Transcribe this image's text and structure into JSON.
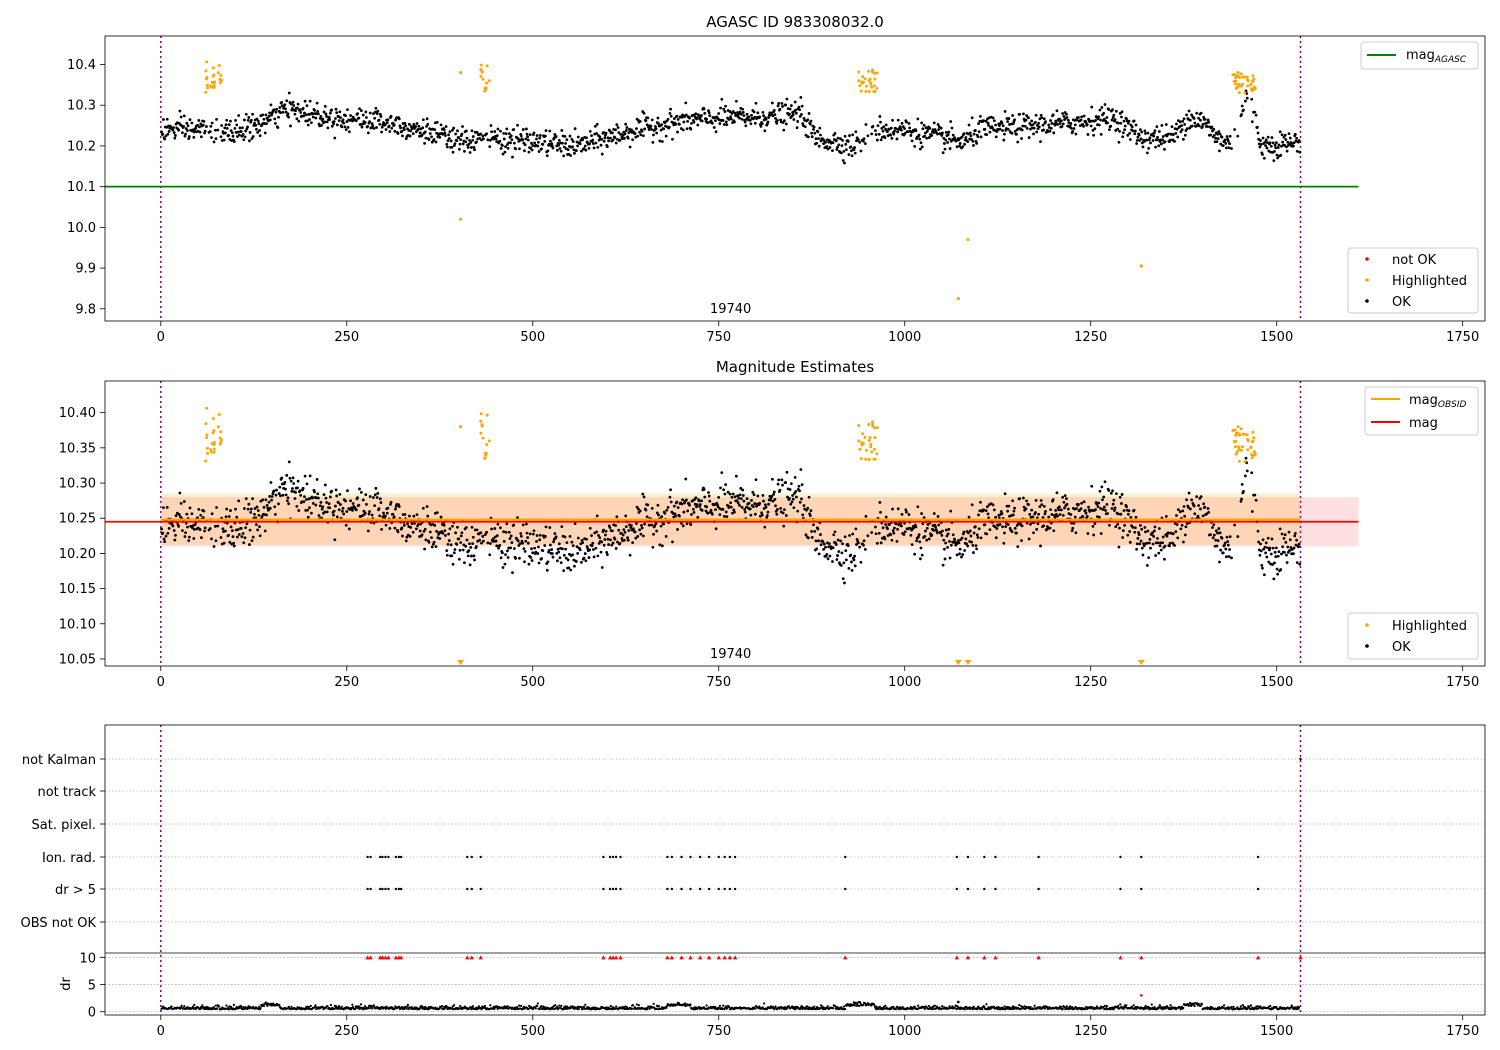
{
  "figure": {
    "title_top": "AGASC ID 983308032.0",
    "title_mid": "Magnitude Estimates"
  },
  "chart_data": [
    {
      "type": "scatter",
      "title": "AGASC ID 983308032.0",
      "xlim": [
        -75,
        1780
      ],
      "ylim": [
        9.77,
        10.47
      ],
      "xticks": [
        0,
        250,
        500,
        750,
        1000,
        1250,
        1500,
        1750
      ],
      "xtick_labels": [
        "0",
        "250",
        "500",
        "750",
        "1000",
        "1250",
        "1500",
        "1750"
      ],
      "yticks": [
        9.8,
        9.9,
        10.0,
        10.1,
        10.2,
        10.3,
        10.4
      ],
      "ytick_labels": [
        "9.8",
        "9.9",
        "10.0",
        "10.1",
        "10.2",
        "10.3",
        "10.4"
      ],
      "vlines": [
        0,
        1532
      ],
      "vline_color": "#800080",
      "hline": {
        "y": 10.1,
        "x_end": 1610,
        "color": "#008000"
      },
      "obsid_label": {
        "text": "19740",
        "x": 766
      },
      "legend_upper": {
        "position": "upper right",
        "entries": [
          {
            "label": "mag",
            "subscript": "AGASC",
            "color": "#008000",
            "kind": "line"
          }
        ]
      },
      "legend_lower": {
        "position": "lower right",
        "entries": [
          {
            "label": "not OK",
            "color": "#ff0000",
            "kind": "dot"
          },
          {
            "label": "Highlighted",
            "color": "#ffa500",
            "kind": "dot"
          },
          {
            "label": "OK",
            "color": "#000000",
            "kind": "dot"
          }
        ]
      },
      "base_level": [
        [
          0,
          10.24
        ],
        [
          60,
          10.24
        ],
        [
          85,
          10.23
        ],
        [
          130,
          10.25
        ],
        [
          170,
          10.29
        ],
        [
          230,
          10.27
        ],
        [
          300,
          10.26
        ],
        [
          350,
          10.24
        ],
        [
          400,
          10.21
        ],
        [
          440,
          10.22
        ],
        [
          500,
          10.21
        ],
        [
          560,
          10.2
        ],
        [
          640,
          10.24
        ],
        [
          700,
          10.26
        ],
        [
          760,
          10.27
        ],
        [
          800,
          10.27
        ],
        [
          860,
          10.28
        ],
        [
          880,
          10.22
        ],
        [
          930,
          10.2
        ],
        [
          960,
          10.24
        ],
        [
          1000,
          10.24
        ],
        [
          1050,
          10.22
        ],
        [
          1080,
          10.21
        ],
        [
          1100,
          10.24
        ],
        [
          1180,
          10.25
        ],
        [
          1240,
          10.26
        ],
        [
          1280,
          10.27
        ],
        [
          1320,
          10.22
        ],
        [
          1360,
          10.22
        ],
        [
          1380,
          10.27
        ],
        [
          1400,
          10.26
        ],
        [
          1420,
          10.22
        ],
        [
          1440,
          10.2
        ],
        [
          1460,
          10.33
        ],
        [
          1480,
          10.2
        ],
        [
          1532,
          10.21
        ]
      ],
      "scatter_sigma": 0.022,
      "highlight_clusters": [
        {
          "x_range": [
            60,
            82
          ],
          "y_range": [
            10.33,
            10.41
          ]
        },
        {
          "x_range": [
            428,
            442
          ],
          "y_range": [
            10.33,
            10.4
          ]
        },
        {
          "x_range": [
            938,
            965
          ],
          "y_range": [
            10.33,
            10.39
          ]
        },
        {
          "x_range": [
            1438,
            1472
          ],
          "y_range": [
            10.33,
            10.38
          ]
        }
      ],
      "highlight_outliers": [
        [
          403,
          10.38
        ],
        [
          403,
          10.02
        ],
        [
          1072,
          9.825
        ],
        [
          1085,
          9.97
        ],
        [
          1318,
          9.905
        ]
      ],
      "marker_colors": {
        "ok": "#000000",
        "highlighted": "#ffa500"
      }
    },
    {
      "type": "scatter",
      "title": "Magnitude Estimates",
      "xlim": [
        -75,
        1780
      ],
      "ylim": [
        10.04,
        10.445
      ],
      "xticks": [
        0,
        250,
        500,
        750,
        1000,
        1250,
        1500,
        1750
      ],
      "xtick_labels": [
        "0",
        "250",
        "500",
        "750",
        "1000",
        "1250",
        "1500",
        "1750"
      ],
      "yticks": [
        10.05,
        10.1,
        10.15,
        10.2,
        10.25,
        10.3,
        10.35,
        10.4
      ],
      "ytick_labels": [
        "10.05",
        "10.10",
        "10.15",
        "10.20",
        "10.25",
        "10.30",
        "10.35",
        "10.40"
      ],
      "vlines": [
        0,
        1532
      ],
      "mag_obsid": {
        "value": 10.248,
        "band": [
          10.212,
          10.285
        ],
        "x_end": 1532,
        "color": "#ffa500"
      },
      "mag": {
        "value": 10.245,
        "band": [
          10.21,
          10.28
        ],
        "x_end": 1610,
        "color": "#ff0000"
      },
      "obsid_label": {
        "text": "19740",
        "x": 766
      },
      "legend_upper": {
        "position": "upper right",
        "entries": [
          {
            "label": "mag",
            "subscript": "OBSID",
            "color": "#ffa500",
            "kind": "line"
          },
          {
            "label": "mag",
            "color": "#ff0000",
            "kind": "line"
          }
        ]
      },
      "legend_lower": {
        "position": "lower right",
        "entries": [
          {
            "label": "Highlighted",
            "color": "#ffa500",
            "kind": "dot"
          },
          {
            "label": "OK",
            "color": "#000000",
            "kind": "dot"
          }
        ]
      },
      "below_range_markers": [
        403,
        1072,
        1085,
        1318
      ]
    },
    {
      "type": "scatter",
      "title": "",
      "xlim": [
        -75,
        1780
      ],
      "flag_rows": [
        "not Kalman",
        "not track",
        "Sat. pixel.",
        "Ion. rad.",
        "dr > 5",
        "OBS not OK"
      ],
      "flag_events": [
        278,
        282,
        295,
        298,
        302,
        306,
        316,
        320,
        323,
        412,
        418,
        430,
        595,
        604,
        608,
        612,
        618,
        681,
        687,
        700,
        712,
        725,
        737,
        750,
        758,
        765,
        772,
        920,
        1070,
        1085,
        1107,
        1122,
        1180,
        1290,
        1318,
        1475
      ],
      "flag_events_rows": [
        "Ion. rad.",
        "dr > 5"
      ],
      "dr_axis": {
        "label": "dr",
        "ylim": [
          -0.6,
          10.8
        ],
        "yticks": [
          0,
          5,
          10
        ],
        "ytick_labels": [
          "0",
          "5",
          "10"
        ],
        "capped_value": 10,
        "capped_color": "#ff0000",
        "outliers": [
          [
            1318,
            3.0
          ],
          [
            1072,
            1.8
          ]
        ]
      },
      "xticks": [
        0,
        250,
        500,
        750,
        1000,
        1250,
        1500,
        1750
      ],
      "xtick_labels": [
        "0",
        "250",
        "500",
        "750",
        "1000",
        "1250",
        "1500",
        "1750"
      ],
      "vlines": [
        0,
        1532
      ]
    }
  ]
}
